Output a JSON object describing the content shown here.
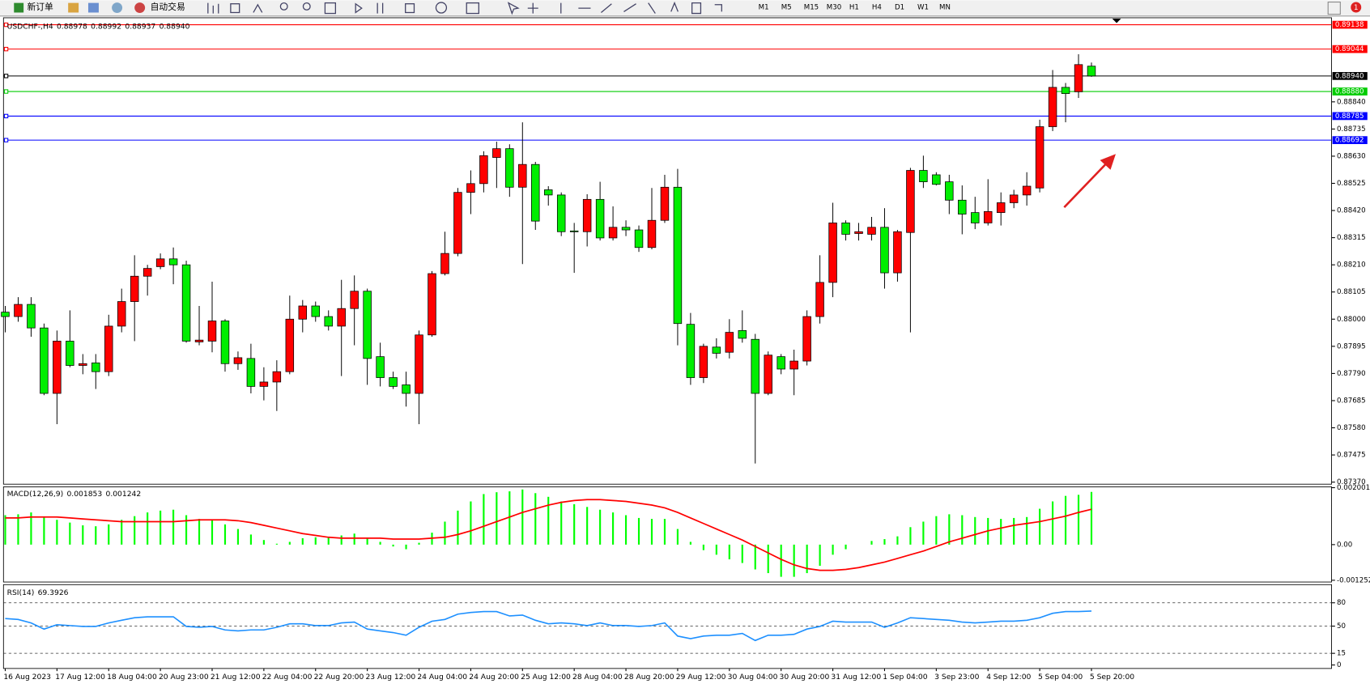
{
  "toolbar": {
    "new_order": "新订单",
    "auto_trading": "自动交易",
    "timeframes": [
      "M1",
      "M5",
      "M15",
      "M30",
      "H1",
      "H4",
      "D1",
      "W1",
      "MN"
    ],
    "badge": "1"
  },
  "chart_data": [
    {
      "type": "candlestick",
      "header": {
        "symbol": "USDCHF-,H4",
        "ohlc": [
          "0.88978",
          "0.88992",
          "0.88937",
          "0.88940"
        ]
      },
      "categories": [
        "16 Aug 2023",
        null,
        null,
        null,
        "17 Aug 12:00",
        null,
        null,
        null,
        "18 Aug 04:00",
        null,
        null,
        null,
        "20 Aug 23:00",
        null,
        null,
        null,
        "21 Aug 12:00",
        null,
        null,
        null,
        "22 Aug 04:00",
        null,
        null,
        null,
        "22 Aug 20:00",
        null,
        null,
        null,
        "23 Aug 12:00",
        null,
        null,
        null,
        "24 Aug 04:00",
        null,
        null,
        null,
        "24 Aug 20:00",
        null,
        null,
        null,
        "25 Aug 12:00",
        null,
        null,
        null,
        "28 Aug 04:00",
        null,
        null,
        null,
        "28 Aug 20:00",
        null,
        null,
        null,
        "29 Aug 12:00",
        null,
        null,
        null,
        "30 Aug 04:00",
        null,
        null,
        null,
        "30 Aug 20:00",
        null,
        null,
        null,
        "31 Aug 12:00",
        null,
        null,
        null,
        "1 Sep 04:00",
        null,
        null,
        null,
        "3 Sep 23:00",
        null,
        null,
        null,
        "4 Sep 12:00",
        null,
        null,
        null,
        "5 Sep 04:00",
        null,
        null,
        null,
        "5 Sep 20:00"
      ],
      "open": [
        0.88027,
        0.8801,
        0.88057,
        0.87966,
        0.87713,
        0.87915,
        0.87821,
        0.87831,
        0.87797,
        0.87973,
        0.88068,
        0.88166,
        0.88203,
        0.88233,
        0.8821,
        0.87912,
        0.87915,
        0.87993,
        0.87828,
        0.87848,
        0.8774,
        0.87757,
        0.87797,
        0.88,
        0.88051,
        0.8801,
        0.87973,
        0.88041,
        0.88108,
        0.87855,
        0.87774,
        0.87746,
        0.87713,
        0.87939,
        0.88176,
        0.88254,
        0.8849,
        0.88524,
        0.88625,
        0.88659,
        0.8851,
        0.88598,
        0.885,
        0.8848,
        0.88341,
        0.88338,
        0.88463,
        0.88314,
        0.88355,
        0.88345,
        0.88277,
        0.88382,
        0.8851,
        0.8798,
        0.87774,
        0.87892,
        0.87872,
        0.87956,
        0.87922,
        0.87713,
        0.87855,
        0.87807,
        0.87838,
        0.8801,
        0.88142,
        0.88372,
        0.88331,
        0.88328,
        0.88355,
        0.88179,
        0.88335,
        0.88575,
        0.88558,
        0.88531,
        0.8846,
        0.88412,
        0.88372,
        0.88412,
        0.8845,
        0.8848,
        0.88507,
        0.88744,
        0.88896,
        0.88879,
        0.88978
      ],
      "high": [
        0.88051,
        0.88085,
        0.88085,
        0.87983,
        0.87956,
        0.88034,
        0.87865,
        0.87865,
        0.88017,
        0.88118,
        0.88247,
        0.8821,
        0.88254,
        0.88277,
        0.88226,
        0.88051,
        0.88145,
        0.88,
        0.87875,
        0.87905,
        0.87814,
        0.87841,
        0.88091,
        0.88074,
        0.88068,
        0.88034,
        0.88152,
        0.88169,
        0.88118,
        0.87909,
        0.87797,
        0.87797,
        0.87956,
        0.88186,
        0.88338,
        0.88507,
        0.88575,
        0.88649,
        0.88686,
        0.88676,
        0.88761,
        0.88608,
        0.88514,
        0.8849,
        0.88372,
        0.88483,
        0.88531,
        0.88436,
        0.88382,
        0.88362,
        0.88507,
        0.88558,
        0.88581,
        0.88024,
        0.87905,
        0.87926,
        0.88,
        0.88034,
        0.87943,
        0.87875,
        0.87865,
        0.87882,
        0.88034,
        0.88247,
        0.8845,
        0.88382,
        0.88372,
        0.88395,
        0.88429,
        0.88345,
        0.88585,
        0.88632,
        0.88568,
        0.88558,
        0.88517,
        0.88473,
        0.88541,
        0.8849,
        0.885,
        0.88568,
        0.88771,
        0.88963,
        0.88913,
        0.89024,
        0.88992
      ],
      "low": [
        0.87949,
        0.8799,
        0.87932,
        0.87706,
        0.87594,
        0.87814,
        0.87787,
        0.8773,
        0.8778,
        0.87949,
        0.87915,
        0.88091,
        0.88193,
        0.88135,
        0.87909,
        0.87899,
        0.87872,
        0.87797,
        0.87804,
        0.87713,
        0.87686,
        0.87645,
        0.87787,
        0.87949,
        0.8799,
        0.87956,
        0.8778,
        0.87899,
        0.87746,
        0.8774,
        0.8773,
        0.87662,
        0.87594,
        0.87932,
        0.88169,
        0.88243,
        0.88406,
        0.8849,
        0.88507,
        0.88473,
        0.88213,
        0.88345,
        0.88439,
        0.88321,
        0.88179,
        0.88281,
        0.88304,
        0.88304,
        0.88321,
        0.8826,
        0.8827,
        0.88372,
        0.87899,
        0.87746,
        0.87753,
        0.87848,
        0.87848,
        0.87909,
        0.87442,
        0.87706,
        0.87787,
        0.87706,
        0.87821,
        0.87983,
        0.88085,
        0.88304,
        0.88304,
        0.88304,
        0.88118,
        0.88145,
        0.87949,
        0.88507,
        0.88517,
        0.88406,
        0.88328,
        0.88348,
        0.88362,
        0.88362,
        0.88429,
        0.88439,
        0.8849,
        0.88727,
        0.88761,
        0.88855,
        0.88937
      ],
      "close": [
        0.8801,
        0.88057,
        0.87966,
        0.87713,
        0.87915,
        0.87821,
        0.87828,
        0.87797,
        0.87973,
        0.88068,
        0.88166,
        0.88196,
        0.88233,
        0.8821,
        0.87915,
        0.87919,
        0.87993,
        0.87828,
        0.87851,
        0.8774,
        0.87757,
        0.87797,
        0.88,
        0.88051,
        0.8801,
        0.87973,
        0.88041,
        0.88108,
        0.87848,
        0.87774,
        0.8774,
        0.87713,
        0.87939,
        0.88176,
        0.88254,
        0.8849,
        0.88524,
        0.88632,
        0.88659,
        0.8851,
        0.88598,
        0.88379,
        0.8848,
        0.88338,
        0.88338,
        0.88463,
        0.88314,
        0.88355,
        0.88345,
        0.88277,
        0.88382,
        0.8851,
        0.87983,
        0.87774,
        0.87895,
        0.87868,
        0.87949,
        0.87926,
        0.87713,
        0.87861,
        0.87807,
        0.87838,
        0.8801,
        0.88142,
        0.88372,
        0.88328,
        0.88338,
        0.88355,
        0.88179,
        0.88338,
        0.88575,
        0.88531,
        0.88521,
        0.8846,
        0.88406,
        0.88372,
        0.88416,
        0.8845,
        0.8848,
        0.88514,
        0.88744,
        0.88896,
        0.88872,
        0.88984,
        0.8894
      ],
      "up_color": "#ff0000",
      "down_color": "#00ee00",
      "ylim": [
        0.87362,
        0.89165
      ],
      "yticks": [
        {
          "value": 0.8884,
          "label": "0.88840"
        },
        0.88735,
        {
          "value": 0.8863,
          "label": "0.88630"
        },
        0.88525,
        {
          "value": 0.8842,
          "label": "0.88420"
        },
        0.88315,
        {
          "value": 0.8821,
          "label": "0.88210"
        },
        0.88105,
        {
          "value": 0.88,
          "label": "0.88000"
        },
        0.87895,
        {
          "value": 0.8779,
          "label": "0.87790"
        },
        0.87685,
        {
          "value": 0.8758,
          "label": "0.87580"
        },
        0.87475,
        {
          "value": 0.8737,
          "label": "0.87370"
        }
      ],
      "levels": [
        {
          "value": 0.89138,
          "color": "#ff0000"
        },
        {
          "value": 0.89044,
          "color": "#ff0000"
        },
        {
          "value": 0.8894,
          "label": "0.88940",
          "color": "#000000"
        },
        {
          "value": 0.8888,
          "label": "0.88880",
          "color": "#00cc00"
        },
        {
          "value": 0.88785,
          "color": "#0000ff"
        },
        {
          "value": 0.88692,
          "color": "#0000ff"
        }
      ],
      "grid": false
    },
    {
      "type": "macd",
      "title": "MACD(12,26,9)",
      "series": [
        {
          "color": "#00ff00",
          "values": [
            0.001034,
            0.001066,
            0.001131,
            0.000969,
            0.000872,
            0.000775,
            0.000678,
            0.000646,
            0.000711,
            0.000872,
            0.001001,
            0.001131,
            0.001195,
            0.001227,
            0.001034,
            0.000904,
            0.000872,
            0.000711,
            0.000549,
            0.000355,
            0.000162,
            3.2e-05,
            9.7e-05,
            0.000226,
            0.000258,
            0.000258,
            0.000323,
            0.000388,
            0.000226,
            9.7e-05,
            -6.5e-05,
            -0.000162,
            6.5e-05,
            0.00042,
            0.000808,
            0.001195,
            0.001518,
            0.001777,
            0.001841,
            0.001873,
            0.001938,
            0.001809,
            0.00168,
            0.001518,
            0.001421,
            0.001324,
            0.001227,
            0.001131,
            0.001034,
            0.000937,
            0.000904,
            0.000904,
            0.000549,
            9.7e-05,
            -0.000194,
            -0.000355,
            -0.000517,
            -0.000646,
            -0.000872,
            -0.001001,
            -0.001131,
            -0.001131,
            -0.001001,
            -0.000743,
            -0.000355,
            -0.000162,
            0,
            0.000129,
            0.000194,
            0.000291,
            0.000614,
            0.000808,
            0.001001,
            0.001066,
            0.001034,
            0.000969,
            0.000937,
            0.000904,
            0.000937,
            0.000969,
            0.00126,
            0.001518,
            0.001712,
            0.00175,
            0.001853
          ]
        },
        {
          "color": "#ff0000",
          "values": [
            0.000937,
            0.000937,
            0.000969,
            0.000969,
            0.000969,
            0.000937,
            0.000904,
            0.000872,
            0.00084,
            0.000808,
            0.000808,
            0.000808,
            0.000808,
            0.000808,
            0.00084,
            0.000872,
            0.000872,
            0.000872,
            0.00084,
            0.000775,
            0.000678,
            0.000581,
            0.000485,
            0.000388,
            0.000323,
            0.000258,
            0.000226,
            0.000226,
            0.000226,
            0.000226,
            0.000194,
            0.000194,
            0.000194,
            0.000226,
            0.000258,
            0.000355,
            0.000485,
            0.000646,
            0.000808,
            0.000969,
            0.001131,
            0.00126,
            0.001389,
            0.001486,
            0.00155,
            0.001583,
            0.001583,
            0.00155,
            0.001518,
            0.001454,
            0.001389,
            0.001292,
            0.001131,
            0.000937,
            0.000743,
            0.000549,
            0.000355,
            0.000162,
            -6.5e-05,
            -0.000291,
            -0.000517,
            -0.000711,
            -0.00084,
            -0.000904,
            -0.000904,
            -0.000872,
            -0.000808,
            -0.000711,
            -0.000614,
            -0.000485,
            -0.000355,
            -0.000226,
            -6.5e-05,
            9.7e-05,
            0.000226,
            0.000355,
            0.000485,
            0.000581,
            0.000678,
            0.000743,
            0.000808,
            0.000904,
            0.001001,
            0.001131,
            0.001242
          ]
        }
      ],
      "ylim": [
        -0.001252,
        0.002001
      ],
      "yticks": [
        0.002001,
        {
          "value": 0,
          "label": "0.00"
        },
        -0.001252
      ]
    },
    {
      "type": "line",
      "title": "RSI(14)",
      "color": "#1e90ff",
      "values": [
        59.7,
        58.6,
        54.1,
        46.2,
        51.8,
        50.7,
        49.6,
        49.6,
        54.1,
        57.5,
        60.8,
        62.0,
        62.0,
        62.0,
        49.6,
        48.5,
        49.6,
        45.1,
        43.9,
        45.1,
        45.1,
        48.5,
        53.0,
        53.0,
        50.7,
        50.7,
        54.1,
        55.2,
        46.2,
        43.9,
        41.7,
        38.3,
        48.5,
        56.3,
        58.6,
        65.4,
        67.6,
        68.7,
        68.7,
        63.1,
        64.2,
        57.5,
        53.0,
        54.1,
        53.0,
        50.7,
        54.1,
        50.7,
        50.7,
        49.6,
        50.7,
        54.1,
        37.2,
        33.8,
        37.2,
        38.3,
        38.3,
        40.6,
        31.5,
        38.3,
        38.3,
        39.4,
        46.2,
        49.6,
        56.3,
        55.2,
        55.2,
        55.2,
        48.5,
        54.1,
        60.8,
        59.7,
        58.6,
        57.5,
        55.2,
        54.1,
        55.2,
        56.3,
        56.3,
        57.5,
        60.8,
        66.5,
        68.7,
        68.7,
        69.3926
      ],
      "ylim": [
        0,
        100
      ],
      "yticks": [
        80,
        50,
        15,
        0
      ],
      "grid": "dashed"
    }
  ]
}
